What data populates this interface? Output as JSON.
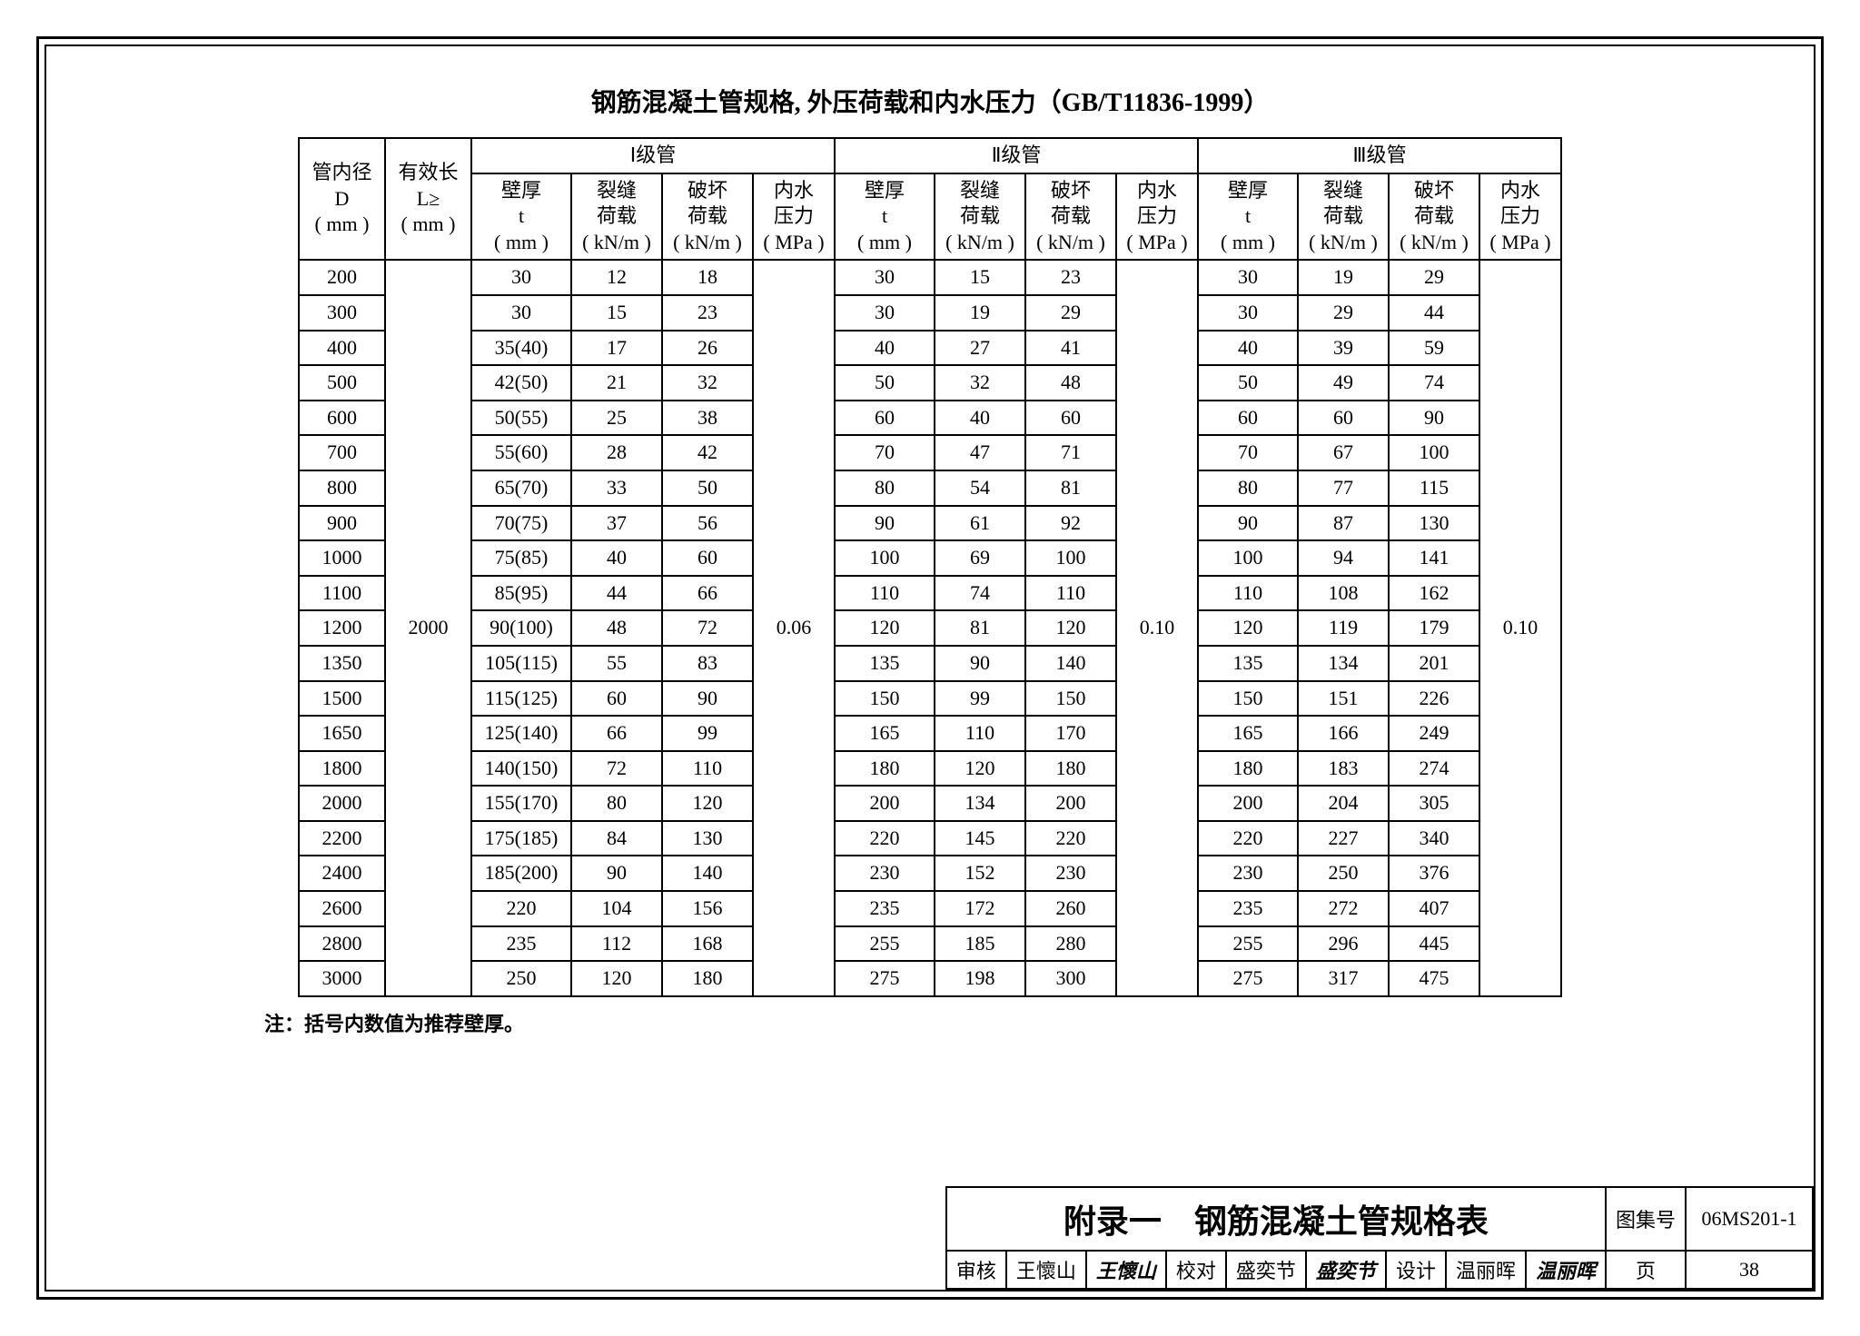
{
  "title": "钢筋混凝土管规格, 外压荷载和内水压力（GB/T11836-1999）",
  "note": "注：括号内数值为推荐壁厚。",
  "headers": {
    "col_d": "管内径\nD\n( mm )",
    "col_l": "有效长\nL≥\n( mm )",
    "grade1": "Ⅰ级管",
    "grade2": "Ⅱ级管",
    "grade3": "Ⅲ级管",
    "t": "壁厚\nt\n( mm )",
    "crack": "裂缝\n荷载\n( kN/m )",
    "break": "破坏\n荷载\n( kN/m )",
    "press": "内水\n压力\n( MPa )"
  },
  "length_value": "2000",
  "press1": "0.06",
  "press2": "0.10",
  "press3": "0.10",
  "rows": [
    {
      "d": "200",
      "t1": "30",
      "c1": "12",
      "b1": "18",
      "t2": "30",
      "c2": "15",
      "b2": "23",
      "t3": "30",
      "c3": "19",
      "b3": "29"
    },
    {
      "d": "300",
      "t1": "30",
      "c1": "15",
      "b1": "23",
      "t2": "30",
      "c2": "19",
      "b2": "29",
      "t3": "30",
      "c3": "29",
      "b3": "44"
    },
    {
      "d": "400",
      "t1": "35(40)",
      "c1": "17",
      "b1": "26",
      "t2": "40",
      "c2": "27",
      "b2": "41",
      "t3": "40",
      "c3": "39",
      "b3": "59"
    },
    {
      "d": "500",
      "t1": "42(50)",
      "c1": "21",
      "b1": "32",
      "t2": "50",
      "c2": "32",
      "b2": "48",
      "t3": "50",
      "c3": "49",
      "b3": "74"
    },
    {
      "d": "600",
      "t1": "50(55)",
      "c1": "25",
      "b1": "38",
      "t2": "60",
      "c2": "40",
      "b2": "60",
      "t3": "60",
      "c3": "60",
      "b3": "90"
    },
    {
      "d": "700",
      "t1": "55(60)",
      "c1": "28",
      "b1": "42",
      "t2": "70",
      "c2": "47",
      "b2": "71",
      "t3": "70",
      "c3": "67",
      "b3": "100"
    },
    {
      "d": "800",
      "t1": "65(70)",
      "c1": "33",
      "b1": "50",
      "t2": "80",
      "c2": "54",
      "b2": "81",
      "t3": "80",
      "c3": "77",
      "b3": "115"
    },
    {
      "d": "900",
      "t1": "70(75)",
      "c1": "37",
      "b1": "56",
      "t2": "90",
      "c2": "61",
      "b2": "92",
      "t3": "90",
      "c3": "87",
      "b3": "130"
    },
    {
      "d": "1000",
      "t1": "75(85)",
      "c1": "40",
      "b1": "60",
      "t2": "100",
      "c2": "69",
      "b2": "100",
      "t3": "100",
      "c3": "94",
      "b3": "141"
    },
    {
      "d": "1100",
      "t1": "85(95)",
      "c1": "44",
      "b1": "66",
      "t2": "110",
      "c2": "74",
      "b2": "110",
      "t3": "110",
      "c3": "108",
      "b3": "162"
    },
    {
      "d": "1200",
      "t1": "90(100)",
      "c1": "48",
      "b1": "72",
      "t2": "120",
      "c2": "81",
      "b2": "120",
      "t3": "120",
      "c3": "119",
      "b3": "179"
    },
    {
      "d": "1350",
      "t1": "105(115)",
      "c1": "55",
      "b1": "83",
      "t2": "135",
      "c2": "90",
      "b2": "140",
      "t3": "135",
      "c3": "134",
      "b3": "201"
    },
    {
      "d": "1500",
      "t1": "115(125)",
      "c1": "60",
      "b1": "90",
      "t2": "150",
      "c2": "99",
      "b2": "150",
      "t3": "150",
      "c3": "151",
      "b3": "226"
    },
    {
      "d": "1650",
      "t1": "125(140)",
      "c1": "66",
      "b1": "99",
      "t2": "165",
      "c2": "110",
      "b2": "170",
      "t3": "165",
      "c3": "166",
      "b3": "249"
    },
    {
      "d": "1800",
      "t1": "140(150)",
      "c1": "72",
      "b1": "110",
      "t2": "180",
      "c2": "120",
      "b2": "180",
      "t3": "180",
      "c3": "183",
      "b3": "274"
    },
    {
      "d": "2000",
      "t1": "155(170)",
      "c1": "80",
      "b1": "120",
      "t2": "200",
      "c2": "134",
      "b2": "200",
      "t3": "200",
      "c3": "204",
      "b3": "305"
    },
    {
      "d": "2200",
      "t1": "175(185)",
      "c1": "84",
      "b1": "130",
      "t2": "220",
      "c2": "145",
      "b2": "220",
      "t3": "220",
      "c3": "227",
      "b3": "340"
    },
    {
      "d": "2400",
      "t1": "185(200)",
      "c1": "90",
      "b1": "140",
      "t2": "230",
      "c2": "152",
      "b2": "230",
      "t3": "230",
      "c3": "250",
      "b3": "376"
    },
    {
      "d": "2600",
      "t1": "220",
      "c1": "104",
      "b1": "156",
      "t2": "235",
      "c2": "172",
      "b2": "260",
      "t3": "235",
      "c3": "272",
      "b3": "407"
    },
    {
      "d": "2800",
      "t1": "235",
      "c1": "112",
      "b1": "168",
      "t2": "255",
      "c2": "185",
      "b2": "280",
      "t3": "255",
      "c3": "296",
      "b3": "445"
    },
    {
      "d": "3000",
      "t1": "250",
      "c1": "120",
      "b1": "180",
      "t2": "275",
      "c2": "198",
      "b2": "300",
      "t3": "275",
      "c3": "317",
      "b3": "475"
    }
  ],
  "titleblock": {
    "appendix": "附录一　钢筋混凝土管规格表",
    "tuji_label": "图集号",
    "tuji_value": "06MS201-1",
    "page_label": "页",
    "page_value": "38",
    "check_label": "审核",
    "check_name": "王懷山",
    "check_sig": "王懷山",
    "proof_label": "校对",
    "proof_name": "盛奕节",
    "proof_sig": "盛奕节",
    "design_label": "设计",
    "design_name": "温丽晖",
    "design_sig": "温丽晖"
  }
}
